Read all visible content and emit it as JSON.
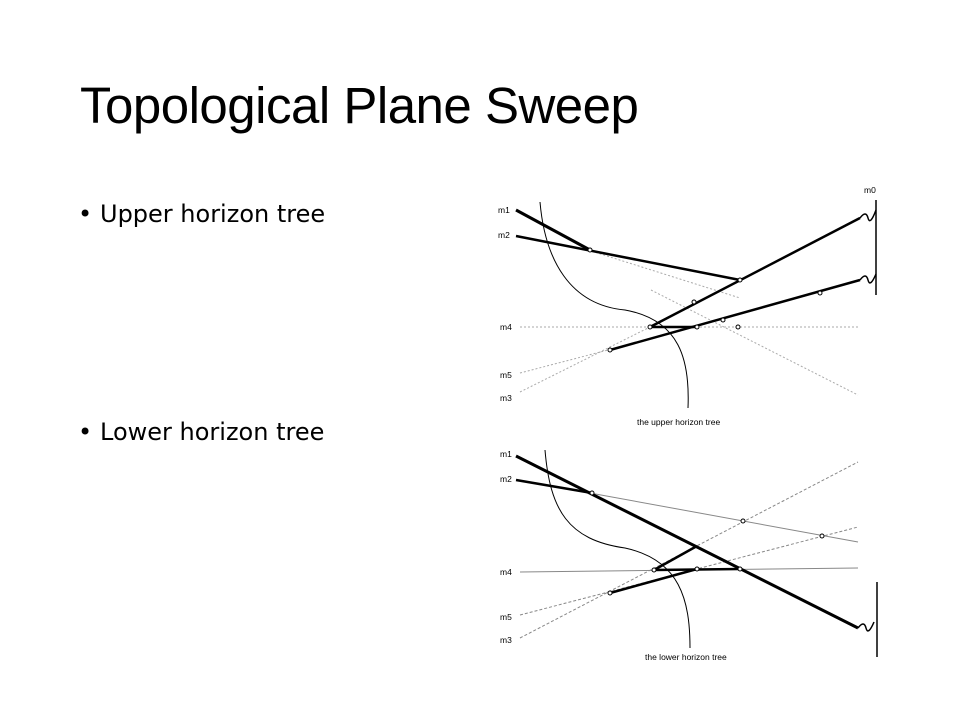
{
  "slide": {
    "title": "Topological Plane Sweep",
    "bullets": [
      {
        "text": "Upper horizon tree"
      },
      {
        "text": "Lower horizon tree"
      }
    ]
  },
  "figures": {
    "upper": {
      "caption": "the upper horizon tree",
      "labels": {
        "m0": "m0",
        "m1": "m1",
        "m2": "m2",
        "m4": "m4",
        "m5": "m5",
        "m3": "m3"
      }
    },
    "lower": {
      "caption": "the lower horizon tree",
      "labels": {
        "m1": "m1",
        "m2": "m2",
        "m4": "m4",
        "m5": "m5",
        "m3": "m3"
      }
    }
  }
}
